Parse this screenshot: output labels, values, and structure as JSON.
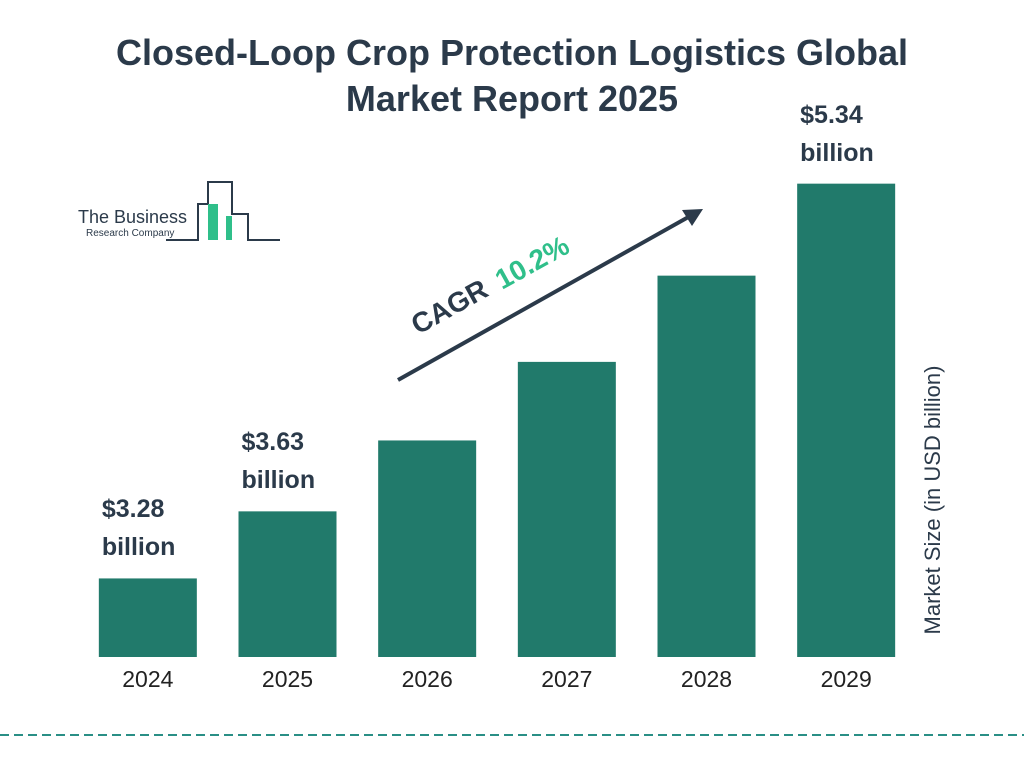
{
  "chart_data": {
    "type": "bar",
    "title": "Closed-Loop Crop Protection Logistics Global Market Report 2025",
    "categories": [
      "2024",
      "2025",
      "2026",
      "2027",
      "2028",
      "2029"
    ],
    "values": [
      3.28,
      3.63,
      4.0,
      4.41,
      4.86,
      5.34
    ],
    "value_labels": [
      "$3.28 billion",
      "$3.63 billion",
      null,
      null,
      null,
      "$5.34 billion"
    ],
    "color": "#217a6b",
    "ylim": [
      2.87,
      5.62
    ],
    "y_label": "Market Size (in USD billion)",
    "annotation": {
      "label": "CAGR",
      "value": "10.2%"
    },
    "logo": {
      "line1": "The Business",
      "line2": "Research Company"
    }
  }
}
